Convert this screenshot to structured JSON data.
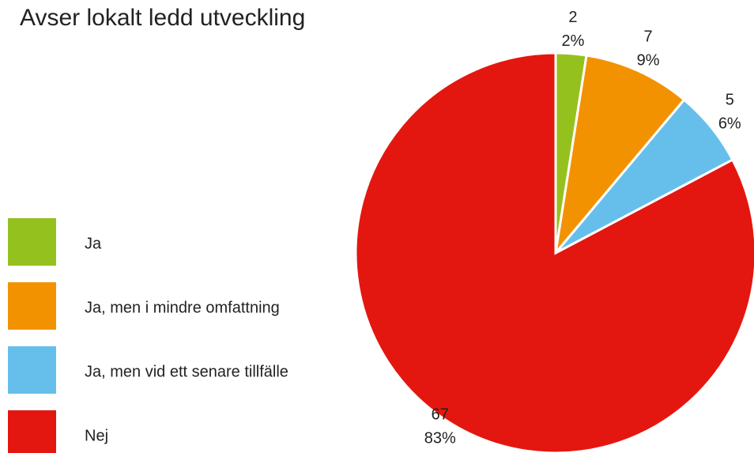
{
  "chart_data": {
    "type": "pie",
    "title": "Avser lokalt ledd utveckling",
    "categories": [
      "Ja",
      "Ja, men i mindre omfattning",
      "Ja, men vid ett senare tillfälle",
      "Nej"
    ],
    "values": [
      2,
      7,
      5,
      67
    ],
    "percent_labels": [
      "2%",
      "9%",
      "6%",
      "83%"
    ],
    "colors": [
      "#95c11f",
      "#f39200",
      "#66bfeb",
      "#e3170f"
    ]
  }
}
